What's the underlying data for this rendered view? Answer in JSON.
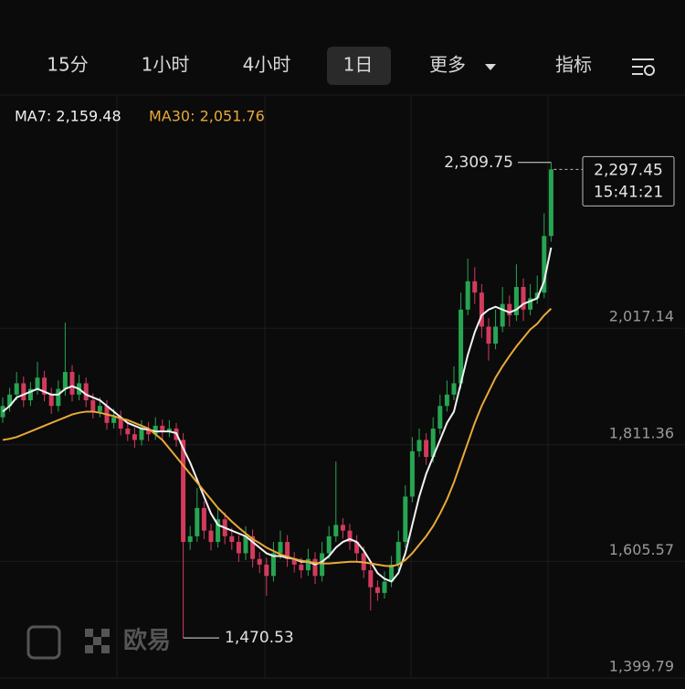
{
  "toolbar": {
    "tabs": [
      "15分",
      "1小时",
      "4小时",
      "1日",
      "更多",
      "指标"
    ],
    "active": 3
  },
  "watermark": "欧易",
  "chart_data": {
    "type": "candlestick",
    "ylim": [
      1399.79,
      2428.71
    ],
    "yticks": [
      {
        "value": 1399.79,
        "label": "1,399.79"
      },
      {
        "value": 1605.57,
        "label": "1,605.57"
      },
      {
        "value": 1811.36,
        "label": "1,811.36"
      },
      {
        "value": 2017.14,
        "label": "2,017.14"
      }
    ],
    "grid": true,
    "up_color": "#27a552",
    "down_color": "#d23b5d",
    "candles": [
      [
        1860,
        1895,
        1850,
        1880
      ],
      [
        1880,
        1912,
        1870,
        1900
      ],
      [
        1900,
        1940,
        1890,
        1920
      ],
      [
        1920,
        1932,
        1878,
        1890
      ],
      [
        1890,
        1922,
        1880,
        1910
      ],
      [
        1910,
        1958,
        1900,
        1930
      ],
      [
        1930,
        1942,
        1888,
        1900
      ],
      [
        1900,
        1912,
        1866,
        1880
      ],
      [
        1880,
        1925,
        1870,
        1910
      ],
      [
        1910,
        2027,
        1898,
        1940
      ],
      [
        1940,
        1952,
        1888,
        1900
      ],
      [
        1900,
        1935,
        1890,
        1920
      ],
      [
        1920,
        1930,
        1878,
        1890
      ],
      [
        1890,
        1902,
        1858,
        1870
      ],
      [
        1870,
        1895,
        1860,
        1880
      ],
      [
        1880,
        1890,
        1838,
        1850
      ],
      [
        1850,
        1875,
        1840,
        1860
      ],
      [
        1860,
        1872,
        1828,
        1840
      ],
      [
        1840,
        1852,
        1818,
        1830
      ],
      [
        1830,
        1842,
        1806,
        1820
      ],
      [
        1820,
        1855,
        1810,
        1840
      ],
      [
        1840,
        1852,
        1818,
        1830
      ],
      [
        1830,
        1860,
        1820,
        1845
      ],
      [
        1845,
        1856,
        1822,
        1835
      ],
      [
        1835,
        1855,
        1825,
        1840
      ],
      [
        1840,
        1850,
        1808,
        1820
      ],
      [
        1820,
        1832,
        1470.53,
        1640
      ],
      [
        1640,
        1668,
        1626,
        1650
      ],
      [
        1650,
        1735,
        1640,
        1700
      ],
      [
        1700,
        1712,
        1645,
        1660
      ],
      [
        1660,
        1672,
        1625,
        1640
      ],
      [
        1640,
        1700,
        1630,
        1680
      ],
      [
        1680,
        1692,
        1636,
        1650
      ],
      [
        1650,
        1665,
        1626,
        1640
      ],
      [
        1640,
        1652,
        1605,
        1620
      ],
      [
        1620,
        1668,
        1608,
        1650
      ],
      [
        1650,
        1662,
        1595,
        1610
      ],
      [
        1610,
        1622,
        1585,
        1600
      ],
      [
        1600,
        1612,
        1545,
        1580
      ],
      [
        1580,
        1640,
        1570,
        1620
      ],
      [
        1620,
        1660,
        1610,
        1640
      ],
      [
        1640,
        1652,
        1596,
        1610
      ],
      [
        1610,
        1622,
        1586,
        1600
      ],
      [
        1600,
        1612,
        1576,
        1590
      ],
      [
        1590,
        1628,
        1580,
        1610
      ],
      [
        1610,
        1622,
        1566,
        1580
      ],
      [
        1580,
        1640,
        1570,
        1620
      ],
      [
        1620,
        1668,
        1610,
        1650
      ],
      [
        1650,
        1782,
        1640,
        1670
      ],
      [
        1670,
        1682,
        1646,
        1660
      ],
      [
        1660,
        1672,
        1626,
        1640
      ],
      [
        1640,
        1652,
        1606,
        1620
      ],
      [
        1620,
        1632,
        1576,
        1590
      ],
      [
        1590,
        1602,
        1519,
        1560
      ],
      [
        1560,
        1572,
        1536,
        1550
      ],
      [
        1550,
        1588,
        1540,
        1570
      ],
      [
        1570,
        1615,
        1560,
        1600
      ],
      [
        1600,
        1660,
        1590,
        1640
      ],
      [
        1640,
        1740,
        1630,
        1720
      ],
      [
        1720,
        1825,
        1710,
        1800
      ],
      [
        1800,
        1840,
        1790,
        1820
      ],
      [
        1820,
        1832,
        1776,
        1790
      ],
      [
        1790,
        1860,
        1780,
        1840
      ],
      [
        1840,
        1900,
        1830,
        1880
      ],
      [
        1880,
        1925,
        1870,
        1900
      ],
      [
        1900,
        1950,
        1890,
        1920
      ],
      [
        1920,
        2080,
        1910,
        2050
      ],
      [
        2050,
        2140,
        2040,
        2100
      ],
      [
        2100,
        2125,
        2060,
        2080
      ],
      [
        2080,
        2095,
        2000,
        2020
      ],
      [
        2020,
        2035,
        1960,
        1990
      ],
      [
        1990,
        2050,
        1980,
        2020
      ],
      [
        2020,
        2090,
        2010,
        2060
      ],
      [
        2060,
        2075,
        2020,
        2040
      ],
      [
        2040,
        2130,
        2030,
        2090
      ],
      [
        2090,
        2105,
        2030,
        2050
      ],
      [
        2050,
        2095,
        2040,
        2070
      ],
      [
        2070,
        2110,
        2060,
        2080
      ],
      [
        2080,
        2220,
        2070,
        2180
      ],
      [
        2180,
        2309.75,
        2170,
        2297.45
      ]
    ],
    "series": [
      {
        "label": "MA7: 2,159.48",
        "color": "#f2f2f2",
        "values": [
          1870,
          1880,
          1895,
          1900,
          1905,
          1910,
          1905,
          1900,
          1900,
          1910,
          1915,
          1910,
          1900,
          1895,
          1890,
          1880,
          1870,
          1860,
          1850,
          1845,
          1840,
          1838,
          1835,
          1835,
          1835,
          1832,
          1805,
          1780,
          1750,
          1720,
          1690,
          1670,
          1665,
          1660,
          1655,
          1650,
          1640,
          1630,
          1620,
          1615,
          1615,
          1612,
          1610,
          1605,
          1605,
          1600,
          1605,
          1615,
          1630,
          1640,
          1645,
          1640,
          1625,
          1605,
          1585,
          1575,
          1570,
          1585,
          1620,
          1670,
          1720,
          1760,
          1790,
          1820,
          1850,
          1870,
          1920,
          1970,
          2010,
          2040,
          2050,
          2055,
          2050,
          2045,
          2050,
          2060,
          2065,
          2070,
          2100,
          2159.48
        ]
      },
      {
        "label": "MA30: 2,051.76",
        "color": "#e9a93a",
        "values": [
          1820,
          1822,
          1825,
          1830,
          1835,
          1840,
          1845,
          1850,
          1855,
          1860,
          1865,
          1868,
          1870,
          1870,
          1868,
          1865,
          1862,
          1858,
          1855,
          1850,
          1845,
          1840,
          1830,
          1820,
          1805,
          1790,
          1775,
          1760,
          1745,
          1730,
          1715,
          1700,
          1688,
          1676,
          1665,
          1655,
          1645,
          1638,
          1630,
          1624,
          1618,
          1614,
          1610,
          1607,
          1605,
          1603,
          1602,
          1602,
          1603,
          1604,
          1605,
          1605,
          1604,
          1602,
          1600,
          1598,
          1597,
          1600,
          1608,
          1620,
          1635,
          1650,
          1668,
          1690,
          1715,
          1745,
          1780,
          1815,
          1850,
          1880,
          1905,
          1930,
          1950,
          1968,
          1985,
          2000,
          2015,
          2025,
          2040,
          2051.76
        ]
      }
    ],
    "max_marker": {
      "value": 2309.75,
      "label": "2,309.75"
    },
    "min_marker": {
      "value": 1470.53,
      "label": "1,470.53"
    },
    "last_price": {
      "value": 2297.45,
      "label": "2,297.45",
      "time": "15:41:21"
    }
  }
}
